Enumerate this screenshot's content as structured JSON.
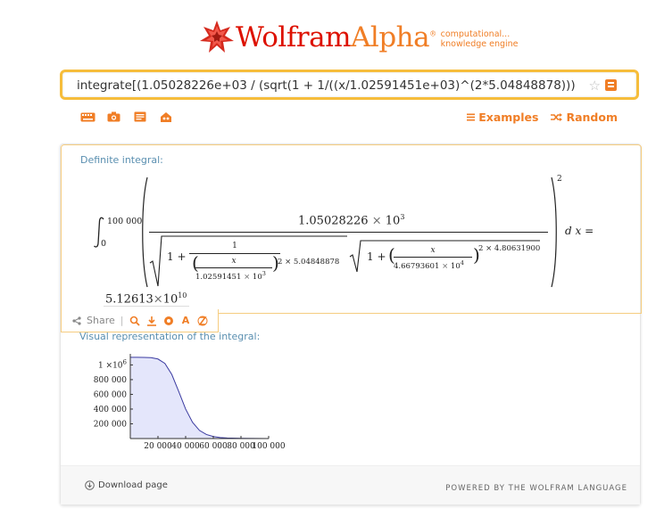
{
  "header": {
    "brand_main": "Wolfram",
    "brand_accent": "Alpha",
    "trademark": "®",
    "tagline_line1": "computational...",
    "tagline_line2": "knowledge engine",
    "brand_color": "#dd1100",
    "accent_color": "#f07e26"
  },
  "search": {
    "query": "integrate[(1.05028226e+03 / (sqrt(1 + 1/((x/1.02591451e+03)^(2*5.04848878)))"
  },
  "toolbar": {
    "icons": [
      "keyboard-icon",
      "camera-icon",
      "document-icon",
      "palette-icon"
    ],
    "examples_label": "Examples",
    "random_label": "Random"
  },
  "pod1": {
    "title": "Definite integral:",
    "lower_limit": "0",
    "upper_limit": "100 000",
    "numerator_coef": "1.05028226",
    "times": "×",
    "ten": "10",
    "numerator_exp": "3",
    "one_plus": "1 +",
    "frac1_num": "1",
    "frac1_x": "x",
    "frac1_den": "1.02591451",
    "frac1_den_exp": "3",
    "frac1_power": "2 × 5.04848878",
    "frac2_x": "x",
    "frac2_den": "4.66793601",
    "frac2_den_exp": "4",
    "frac2_power": "2 × 4.80631900",
    "outer_exp": "2",
    "dx": "d x =",
    "result_coef": "5.12613",
    "result_exp": "10"
  },
  "share_bar": {
    "share_label": "Share",
    "separator": "|",
    "icons": [
      "zoom-icon",
      "download-icon",
      "wolfram-icon",
      "text-icon",
      "wolfram-cloud-icon"
    ]
  },
  "pod2": {
    "title": "Visual representation of the integral:"
  },
  "chart_data": {
    "type": "area",
    "x": [
      0,
      5000,
      10000,
      15000,
      20000,
      25000,
      30000,
      35000,
      40000,
      45000,
      50000,
      55000,
      60000,
      65000,
      70000,
      80000,
      90000,
      100000
    ],
    "y": [
      1103000,
      1103000,
      1102000,
      1098000,
      1080000,
      1020000,
      870000,
      640000,
      400000,
      220000,
      110000,
      55000,
      27000,
      14000,
      8000,
      3000,
      1000,
      500
    ],
    "xlim": [
      0,
      100000
    ],
    "ylim": [
      0,
      1150000
    ],
    "y_ticks": [
      {
        "value": 200000,
        "label": "200 000"
      },
      {
        "value": 400000,
        "label": "400 000"
      },
      {
        "value": 600000,
        "label": "600 000"
      },
      {
        "value": 800000,
        "label": "800 000"
      },
      {
        "value": 1000000,
        "label": "1 ×10",
        "sup": "6"
      }
    ],
    "x_ticks": [
      {
        "value": 20000,
        "label": "20 000"
      },
      {
        "value": 40000,
        "label": "40 000"
      },
      {
        "value": 60000,
        "label": "60 000"
      },
      {
        "value": 80000,
        "label": "80 000"
      },
      {
        "value": 100000,
        "label": "100 000"
      }
    ],
    "line_color": "#3a3aa0",
    "fill_color": "#e4e6fb",
    "grid": false
  },
  "footer": {
    "download_label": "Download page",
    "powered_label": "POWERED BY THE WOLFRAM LANGUAGE"
  }
}
